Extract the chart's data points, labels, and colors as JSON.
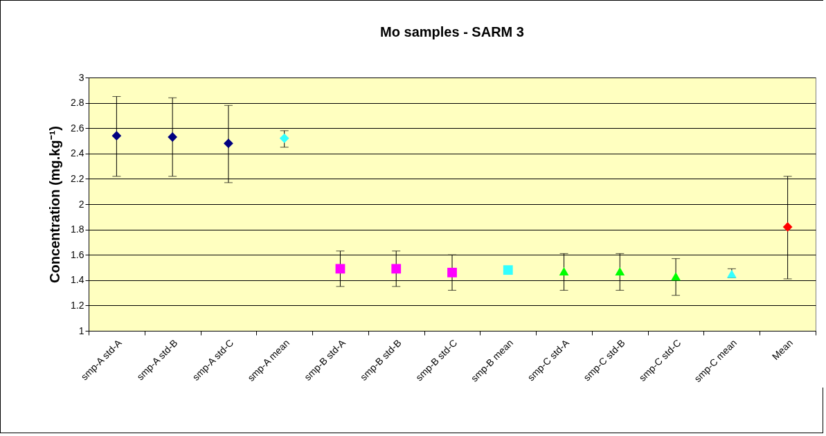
{
  "chart_data": {
    "type": "scatter",
    "title": "Mo samples - SARM 3",
    "ylabel": "Concentration (mg.kg⁻¹)",
    "categories": [
      "smp-A std-A",
      "smp-A std-B",
      "smp-A std-C",
      "smp-A mean",
      "smp-B std-A",
      "smp-B std-B",
      "smp-B std-C",
      "smp-B mean",
      "smp-C std-A",
      "smp-C std-B",
      "smp-C std-C",
      "smp-C mean",
      "Mean"
    ],
    "series": [
      {
        "color": "#000080",
        "marker": "diamond",
        "values": [
          2.54,
          2.53,
          2.48,
          null,
          null,
          null,
          null,
          null,
          null,
          null,
          null,
          null,
          null
        ],
        "errors": [
          [
            2.22,
            2.85
          ],
          [
            2.22,
            2.84
          ],
          [
            2.17,
            2.78
          ],
          null,
          null,
          null,
          null,
          null,
          null,
          null,
          null,
          null,
          null
        ]
      },
      {
        "color": "#33ffff",
        "marker": "diamond",
        "values": [
          null,
          null,
          null,
          2.52,
          null,
          null,
          null,
          null,
          null,
          null,
          null,
          null,
          null
        ],
        "errors": [
          null,
          null,
          null,
          [
            2.45,
            2.58
          ],
          null,
          null,
          null,
          null,
          null,
          null,
          null,
          null,
          null
        ]
      },
      {
        "color": "#ff00ff",
        "marker": "square",
        "values": [
          null,
          null,
          null,
          null,
          1.49,
          1.49,
          1.46,
          null,
          null,
          null,
          null,
          null,
          null
        ],
        "errors": [
          null,
          null,
          null,
          null,
          [
            1.35,
            1.63
          ],
          [
            1.35,
            1.63
          ],
          [
            1.32,
            1.6
          ],
          null,
          null,
          null,
          null,
          null,
          null
        ]
      },
      {
        "color": "#33ffff",
        "marker": "square",
        "values": [
          null,
          null,
          null,
          null,
          null,
          null,
          null,
          1.48,
          null,
          null,
          null,
          null,
          null
        ]
      },
      {
        "color": "#00ff00",
        "marker": "triangle",
        "values": [
          null,
          null,
          null,
          null,
          null,
          null,
          null,
          null,
          1.47,
          1.47,
          1.43,
          null,
          null
        ],
        "errors": [
          null,
          null,
          null,
          null,
          null,
          null,
          null,
          null,
          [
            1.32,
            1.61
          ],
          [
            1.32,
            1.61
          ],
          [
            1.28,
            1.57
          ],
          null,
          null
        ]
      },
      {
        "color": "#33ffff",
        "marker": "triangle",
        "values": [
          null,
          null,
          null,
          null,
          null,
          null,
          null,
          null,
          null,
          null,
          null,
          1.45,
          null
        ],
        "errors": [
          null,
          null,
          null,
          null,
          null,
          null,
          null,
          null,
          null,
          null,
          null,
          [
            1.42,
            1.49
          ],
          null
        ]
      },
      {
        "color": "#ff0000",
        "marker": "diamond",
        "values": [
          null,
          null,
          null,
          null,
          null,
          null,
          null,
          null,
          null,
          null,
          null,
          null,
          1.82
        ],
        "errors": [
          null,
          null,
          null,
          null,
          null,
          null,
          null,
          null,
          null,
          null,
          null,
          null,
          [
            1.41,
            2.22
          ]
        ]
      }
    ],
    "ylim": [
      1,
      3
    ],
    "yticks": [
      1,
      1.2,
      1.4,
      1.6,
      1.8,
      2,
      2.2,
      2.4,
      2.6,
      2.8,
      3
    ],
    "grid": "y"
  }
}
